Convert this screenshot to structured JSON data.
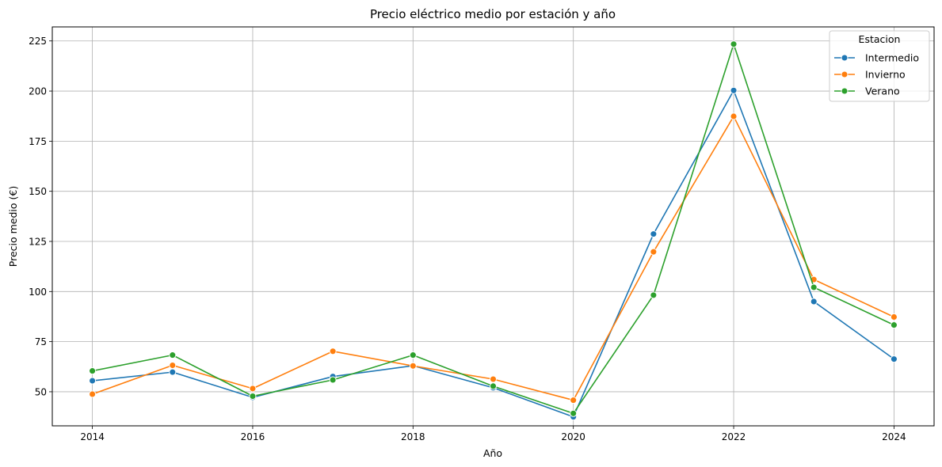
{
  "chart_data": {
    "type": "line",
    "title": "Precio eléctrico medio por estación y año",
    "xlabel": "Año",
    "ylabel": "Precio medio (€)",
    "x": [
      2014,
      2015,
      2016,
      2017,
      2018,
      2019,
      2020,
      2021,
      2022,
      2023,
      2024
    ],
    "x_ticks": [
      "2014",
      "2016",
      "2018",
      "2020",
      "2022",
      "2024"
    ],
    "y_ticks": [
      "50",
      "75",
      "100",
      "125",
      "150",
      "175",
      "200",
      "225"
    ],
    "xlim": [
      2013.5,
      2024.5
    ],
    "ylim": [
      33,
      232
    ],
    "grid": true,
    "legend": {
      "title": "Estacion",
      "position": "top-right"
    },
    "series": [
      {
        "name": "Intermedio",
        "color": "#1f77b4",
        "values": [
          55.5,
          59.8,
          47.2,
          57.6,
          63.0,
          52.0,
          37.5,
          128.7,
          200.3,
          95.0,
          66.3
        ]
      },
      {
        "name": "Invierno",
        "color": "#ff7f0e",
        "values": [
          48.8,
          63.2,
          51.6,
          70.2,
          62.9,
          56.3,
          45.8,
          119.8,
          187.4,
          106.0,
          87.3
        ]
      },
      {
        "name": "Verano",
        "color": "#2ca02c",
        "values": [
          60.4,
          68.3,
          47.8,
          55.9,
          68.3,
          52.8,
          39.2,
          98.2,
          223.4,
          102.1,
          83.3
        ]
      }
    ]
  }
}
